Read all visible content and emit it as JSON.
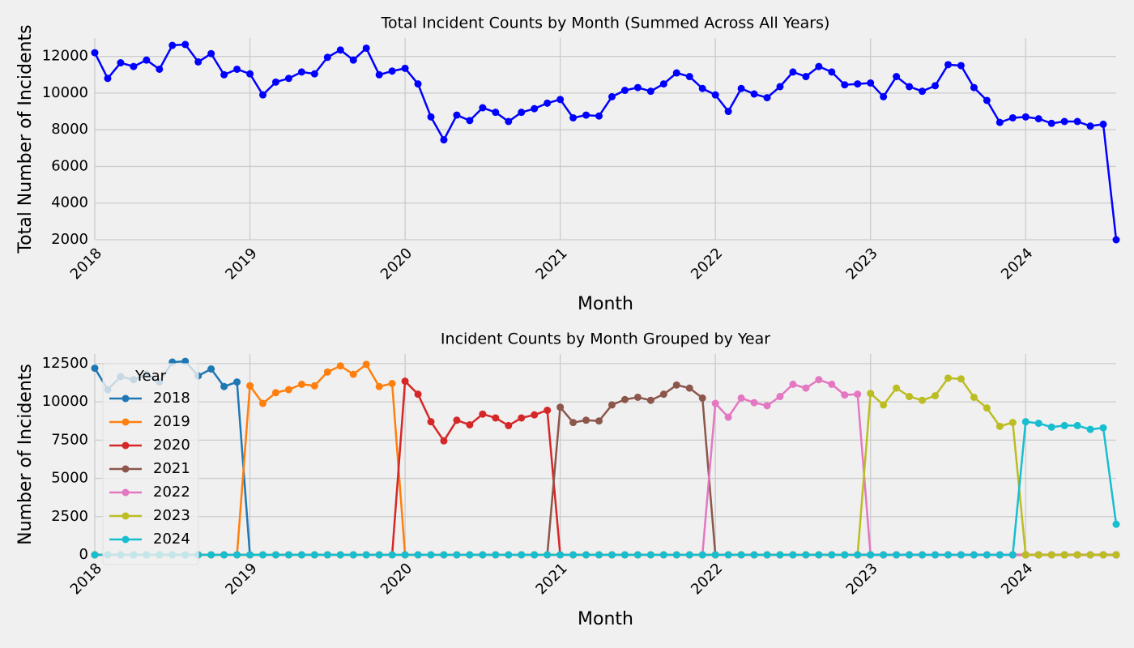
{
  "chart_data": [
    {
      "type": "line",
      "title": "Total Incident Counts by Month (Summed Across All Years)",
      "x_label": "Month",
      "y_label": "Total Number of Incidents",
      "x": [
        "2018-01",
        "2018-02",
        "2018-03",
        "2018-04",
        "2018-05",
        "2018-06",
        "2018-07",
        "2018-08",
        "2018-09",
        "2018-10",
        "2018-11",
        "2018-12",
        "2019-01",
        "2019-02",
        "2019-03",
        "2019-04",
        "2019-05",
        "2019-06",
        "2019-07",
        "2019-08",
        "2019-09",
        "2019-10",
        "2019-11",
        "2019-12",
        "2020-01",
        "2020-02",
        "2020-03",
        "2020-04",
        "2020-05",
        "2020-06",
        "2020-07",
        "2020-08",
        "2020-09",
        "2020-10",
        "2020-11",
        "2020-12",
        "2021-01",
        "2021-02",
        "2021-03",
        "2021-04",
        "2021-05",
        "2021-06",
        "2021-07",
        "2021-08",
        "2021-09",
        "2021-10",
        "2021-11",
        "2021-12",
        "2022-01",
        "2022-02",
        "2022-03",
        "2022-04",
        "2022-05",
        "2022-06",
        "2022-07",
        "2022-08",
        "2022-09",
        "2022-10",
        "2022-11",
        "2022-12",
        "2023-01",
        "2023-02",
        "2023-03",
        "2023-04",
        "2023-05",
        "2023-06",
        "2023-07",
        "2023-08",
        "2023-09",
        "2023-10",
        "2023-11",
        "2023-12",
        "2024-01",
        "2024-02",
        "2024-03",
        "2024-04",
        "2024-05",
        "2024-06",
        "2024-07",
        "2024-08"
      ],
      "values": [
        12200,
        10800,
        11650,
        11450,
        11800,
        11300,
        12600,
        12650,
        11700,
        12150,
        11000,
        11300,
        11050,
        9900,
        10600,
        10800,
        11150,
        11050,
        11950,
        12350,
        11800,
        12450,
        11000,
        11200,
        11350,
        10500,
        8700,
        7450,
        8800,
        8500,
        9200,
        8950,
        8450,
        8950,
        9150,
        9450,
        9650,
        8650,
        8800,
        8750,
        9800,
        10150,
        10300,
        10100,
        10500,
        11100,
        10900,
        10250,
        9900,
        9000,
        10250,
        9950,
        9750,
        10350,
        11150,
        10900,
        11450,
        11150,
        10450,
        10500,
        10550,
        9800,
        10900,
        10350,
        10100,
        10400,
        11550,
        11500,
        10300,
        9600,
        8400,
        8650,
        8700,
        8600,
        8350,
        8450,
        8450,
        8200,
        8300,
        2000
      ],
      "color": "#0000ff",
      "xlim": [
        "2018-01",
        "2024-08"
      ],
      "xticks": [
        {
          "value": "2018-01",
          "label": "2018"
        },
        {
          "value": "2019-01",
          "label": "2019"
        },
        {
          "value": "2020-01",
          "label": "2020"
        },
        {
          "value": "2021-01",
          "label": "2021"
        },
        {
          "value": "2022-01",
          "label": "2022"
        },
        {
          "value": "2023-01",
          "label": "2023"
        },
        {
          "value": "2024-01",
          "label": "2024"
        }
      ],
      "ylim": [
        2000,
        13000
      ],
      "yticks": [
        2000,
        4000,
        6000,
        8000,
        10000,
        12000
      ],
      "grid": true
    },
    {
      "type": "line",
      "title": "Incident Counts by Month Grouped by Year",
      "x_label": "Month",
      "y_label": "Number of Incidents",
      "legend_title": "Year",
      "legend": "upper left",
      "x": [
        "2018-01",
        "2018-02",
        "2018-03",
        "2018-04",
        "2018-05",
        "2018-06",
        "2018-07",
        "2018-08",
        "2018-09",
        "2018-10",
        "2018-11",
        "2018-12",
        "2019-01",
        "2019-02",
        "2019-03",
        "2019-04",
        "2019-05",
        "2019-06",
        "2019-07",
        "2019-08",
        "2019-09",
        "2019-10",
        "2019-11",
        "2019-12",
        "2020-01",
        "2020-02",
        "2020-03",
        "2020-04",
        "2020-05",
        "2020-06",
        "2020-07",
        "2020-08",
        "2020-09",
        "2020-10",
        "2020-11",
        "2020-12",
        "2021-01",
        "2021-02",
        "2021-03",
        "2021-04",
        "2021-05",
        "2021-06",
        "2021-07",
        "2021-08",
        "2021-09",
        "2021-10",
        "2021-11",
        "2021-12",
        "2022-01",
        "2022-02",
        "2022-03",
        "2022-04",
        "2022-05",
        "2022-06",
        "2022-07",
        "2022-08",
        "2022-09",
        "2022-10",
        "2022-11",
        "2022-12",
        "2023-01",
        "2023-02",
        "2023-03",
        "2023-04",
        "2023-05",
        "2023-06",
        "2023-07",
        "2023-08",
        "2023-09",
        "2023-10",
        "2023-11",
        "2023-12",
        "2024-01",
        "2024-02",
        "2024-03",
        "2024-04",
        "2024-05",
        "2024-06",
        "2024-07",
        "2024-08"
      ],
      "series": [
        {
          "name": "2018",
          "color": "#1f77b4",
          "values": [
            12200,
            10800,
            11650,
            11450,
            11800,
            11300,
            12600,
            12650,
            11700,
            12150,
            11000,
            11300,
            0,
            0,
            0,
            0,
            0,
            0,
            0,
            0,
            0,
            0,
            0,
            0,
            0,
            0,
            0,
            0,
            0,
            0,
            0,
            0,
            0,
            0,
            0,
            0,
            0,
            0,
            0,
            0,
            0,
            0,
            0,
            0,
            0,
            0,
            0,
            0,
            0,
            0,
            0,
            0,
            0,
            0,
            0,
            0,
            0,
            0,
            0,
            0,
            0,
            0,
            0,
            0,
            0,
            0,
            0,
            0,
            0,
            0,
            0,
            0,
            0,
            0,
            0,
            0,
            0,
            0,
            0,
            0
          ]
        },
        {
          "name": "2019",
          "color": "#ff7f0e",
          "values": [
            0,
            0,
            0,
            0,
            0,
            0,
            0,
            0,
            0,
            0,
            0,
            0,
            11050,
            9900,
            10600,
            10800,
            11150,
            11050,
            11950,
            12350,
            11800,
            12450,
            11000,
            11200,
            0,
            0,
            0,
            0,
            0,
            0,
            0,
            0,
            0,
            0,
            0,
            0,
            0,
            0,
            0,
            0,
            0,
            0,
            0,
            0,
            0,
            0,
            0,
            0,
            0,
            0,
            0,
            0,
            0,
            0,
            0,
            0,
            0,
            0,
            0,
            0,
            0,
            0,
            0,
            0,
            0,
            0,
            0,
            0,
            0,
            0,
            0,
            0,
            0,
            0,
            0,
            0,
            0,
            0,
            0,
            0
          ]
        },
        {
          "name": "2020",
          "color": "#d62728",
          "values": [
            0,
            0,
            0,
            0,
            0,
            0,
            0,
            0,
            0,
            0,
            0,
            0,
            0,
            0,
            0,
            0,
            0,
            0,
            0,
            0,
            0,
            0,
            0,
            0,
            11350,
            10500,
            8700,
            7450,
            8800,
            8500,
            9200,
            8950,
            8450,
            8950,
            9150,
            9450,
            0,
            0,
            0,
            0,
            0,
            0,
            0,
            0,
            0,
            0,
            0,
            0,
            0,
            0,
            0,
            0,
            0,
            0,
            0,
            0,
            0,
            0,
            0,
            0,
            0,
            0,
            0,
            0,
            0,
            0,
            0,
            0,
            0,
            0,
            0,
            0,
            0,
            0,
            0,
            0,
            0,
            0,
            0,
            0
          ]
        },
        {
          "name": "2021",
          "color": "#8c564b",
          "values": [
            0,
            0,
            0,
            0,
            0,
            0,
            0,
            0,
            0,
            0,
            0,
            0,
            0,
            0,
            0,
            0,
            0,
            0,
            0,
            0,
            0,
            0,
            0,
            0,
            0,
            0,
            0,
            0,
            0,
            0,
            0,
            0,
            0,
            0,
            0,
            0,
            9650,
            8650,
            8800,
            8750,
            9800,
            10150,
            10300,
            10100,
            10500,
            11100,
            10900,
            10250,
            0,
            0,
            0,
            0,
            0,
            0,
            0,
            0,
            0,
            0,
            0,
            0,
            0,
            0,
            0,
            0,
            0,
            0,
            0,
            0,
            0,
            0,
            0,
            0,
            0,
            0,
            0,
            0,
            0,
            0,
            0,
            0
          ]
        },
        {
          "name": "2022",
          "color": "#e377c2",
          "values": [
            0,
            0,
            0,
            0,
            0,
            0,
            0,
            0,
            0,
            0,
            0,
            0,
            0,
            0,
            0,
            0,
            0,
            0,
            0,
            0,
            0,
            0,
            0,
            0,
            0,
            0,
            0,
            0,
            0,
            0,
            0,
            0,
            0,
            0,
            0,
            0,
            0,
            0,
            0,
            0,
            0,
            0,
            0,
            0,
            0,
            0,
            0,
            0,
            9900,
            9000,
            10250,
            9950,
            9750,
            10350,
            11150,
            10900,
            11450,
            11150,
            10450,
            10500,
            0,
            0,
            0,
            0,
            0,
            0,
            0,
            0,
            0,
            0,
            0,
            0,
            0,
            0,
            0,
            0,
            0,
            0,
            0,
            0
          ]
        },
        {
          "name": "2023",
          "color": "#bcbd22",
          "values": [
            0,
            0,
            0,
            0,
            0,
            0,
            0,
            0,
            0,
            0,
            0,
            0,
            0,
            0,
            0,
            0,
            0,
            0,
            0,
            0,
            0,
            0,
            0,
            0,
            0,
            0,
            0,
            0,
            0,
            0,
            0,
            0,
            0,
            0,
            0,
            0,
            0,
            0,
            0,
            0,
            0,
            0,
            0,
            0,
            0,
            0,
            0,
            0,
            0,
            0,
            0,
            0,
            0,
            0,
            0,
            0,
            0,
            0,
            0,
            0,
            10550,
            9800,
            10900,
            10350,
            10100,
            10400,
            11550,
            11500,
            10300,
            9600,
            8400,
            8650,
            0,
            0,
            0,
            0,
            0,
            0,
            0,
            0
          ]
        },
        {
          "name": "2024",
          "color": "#17becf",
          "values": [
            0,
            0,
            0,
            0,
            0,
            0,
            0,
            0,
            0,
            0,
            0,
            0,
            0,
            0,
            0,
            0,
            0,
            0,
            0,
            0,
            0,
            0,
            0,
            0,
            0,
            0,
            0,
            0,
            0,
            0,
            0,
            0,
            0,
            0,
            0,
            0,
            0,
            0,
            0,
            0,
            0,
            0,
            0,
            0,
            0,
            0,
            0,
            0,
            0,
            0,
            0,
            0,
            0,
            0,
            0,
            0,
            0,
            0,
            0,
            0,
            0,
            0,
            0,
            0,
            0,
            0,
            0,
            0,
            0,
            0,
            0,
            0,
            8700,
            8600,
            8350,
            8450,
            8450,
            8200,
            8300,
            2000
          ]
        }
      ],
      "xlim": [
        "2018-01",
        "2024-08"
      ],
      "xticks": [
        {
          "value": "2018-01",
          "label": "2018"
        },
        {
          "value": "2019-01",
          "label": "2019"
        },
        {
          "value": "2020-01",
          "label": "2020"
        },
        {
          "value": "2021-01",
          "label": "2021"
        },
        {
          "value": "2022-01",
          "label": "2022"
        },
        {
          "value": "2023-01",
          "label": "2023"
        },
        {
          "value": "2024-01",
          "label": "2024"
        }
      ],
      "ylim": [
        0,
        13130
      ],
      "yticks": [
        0,
        2500,
        5000,
        7500,
        10000,
        12500
      ],
      "grid": true
    }
  ]
}
